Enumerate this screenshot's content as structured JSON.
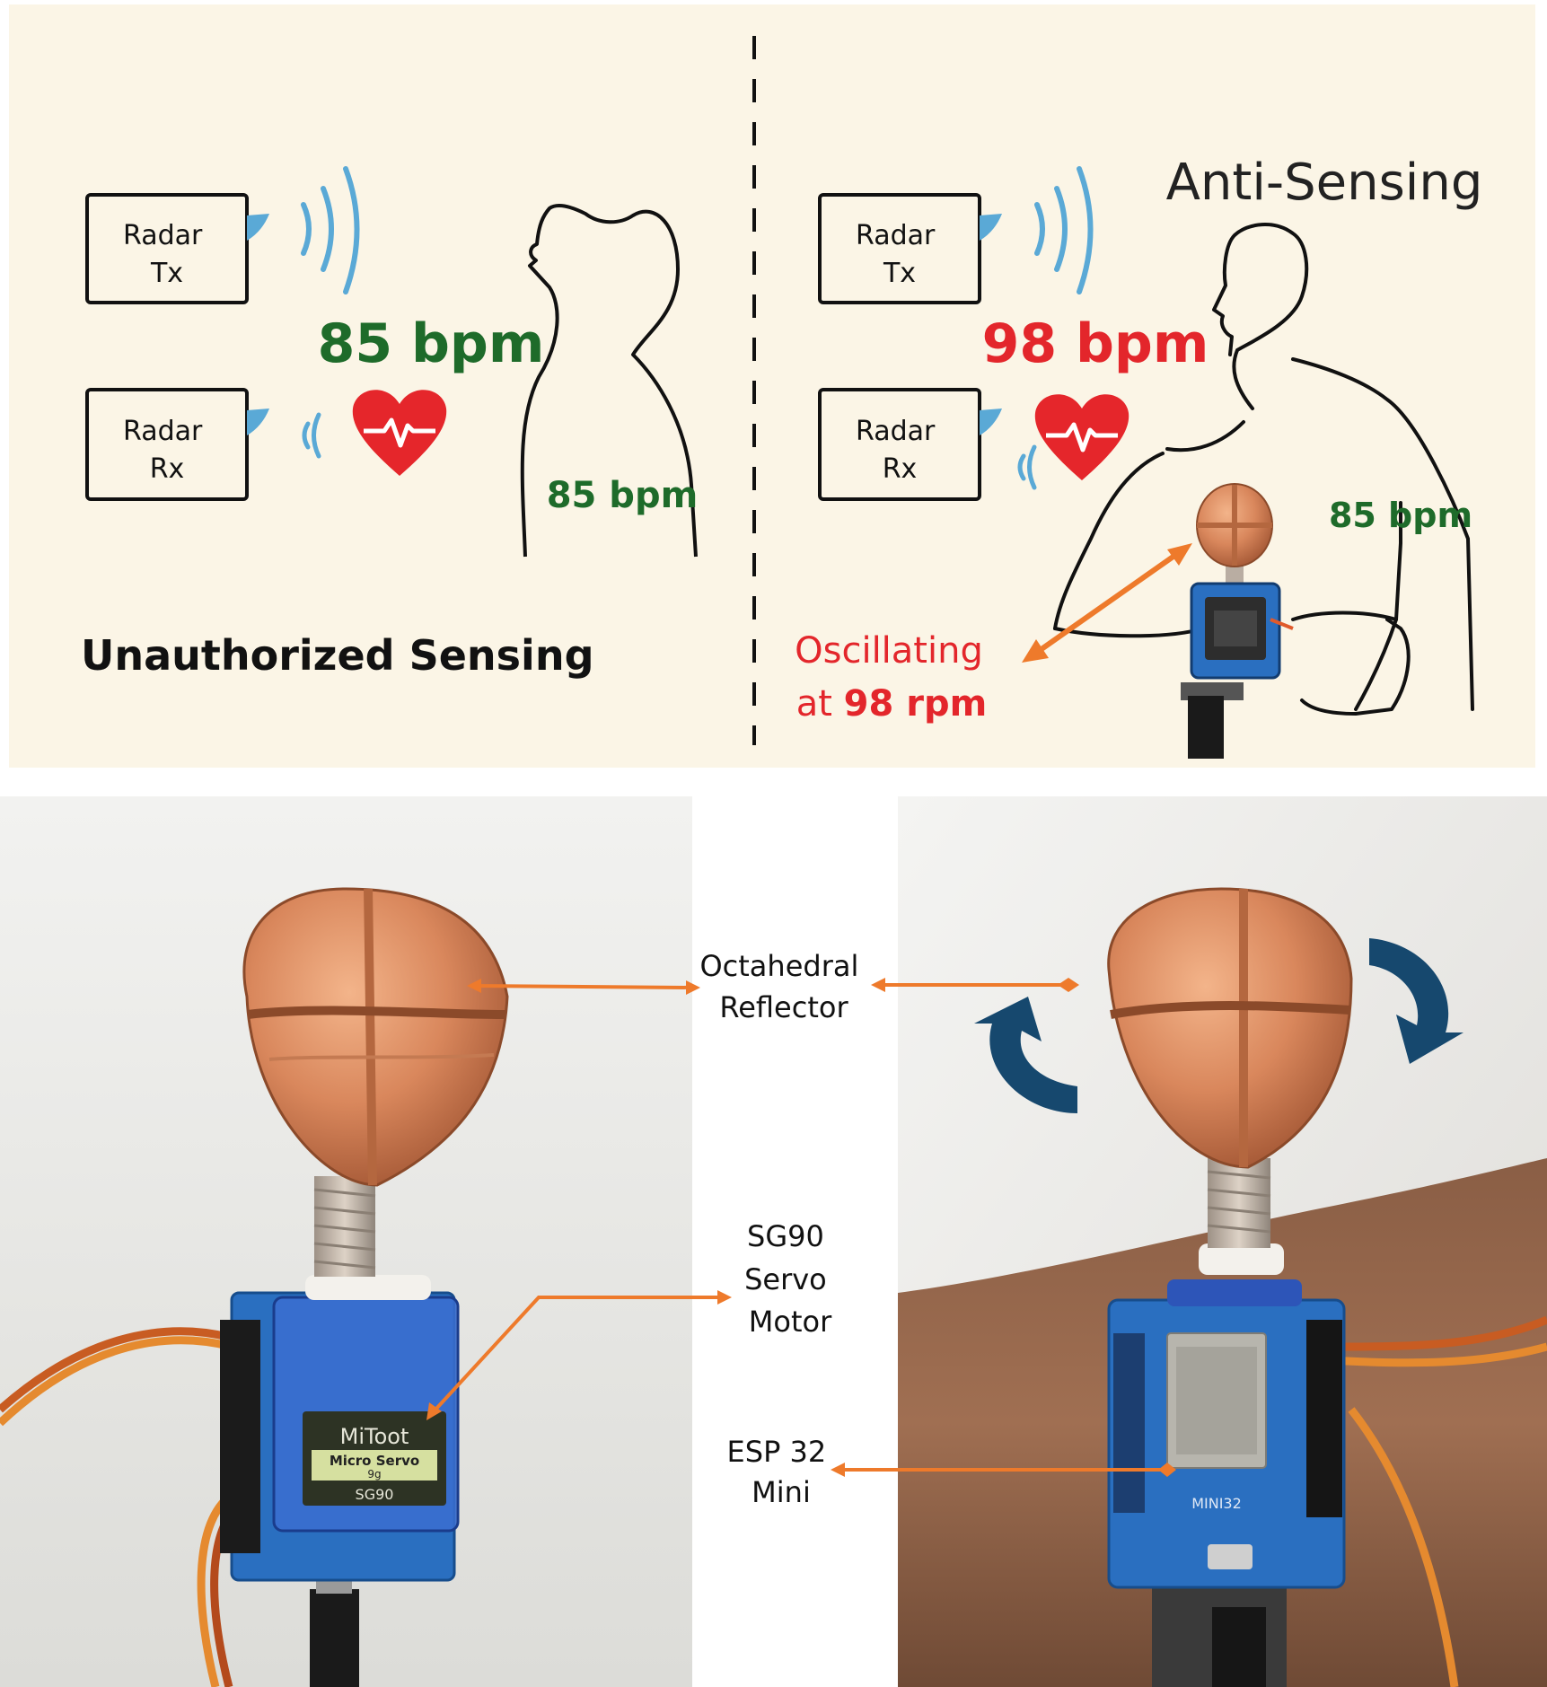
{
  "colors": {
    "background": "#fbf5e6",
    "wave": "#5aa9d6",
    "heart": "#e5262b",
    "green": "#1e6b2a",
    "red": "#e3262b",
    "arrow": "#ee7a2b",
    "copper": "#d9875c",
    "board": "#2a6fc0",
    "rotate": "#16486e"
  },
  "left": {
    "title": "Unauthorized Sensing",
    "radar_tx": [
      "Radar",
      "Tx"
    ],
    "radar_rx": [
      "Radar",
      "Rx"
    ],
    "sensed_rate": "85 bpm",
    "true_rate": "85 bpm"
  },
  "right": {
    "title": "Anti-Sensing",
    "radar_tx": [
      "Radar",
      "Tx"
    ],
    "radar_rx": [
      "Radar",
      "Rx"
    ],
    "sensed_rate": "98 bpm",
    "true_rate": "85 bpm",
    "osc_line1": "Oscillating",
    "osc_line2_prefix": "at ",
    "osc_line2_value": "98 rpm"
  },
  "photos": {
    "reflector_label": [
      "Octahedral",
      "Reflector"
    ],
    "servo_label": [
      "SG90",
      "Servo",
      "Motor"
    ],
    "esp_label": [
      "ESP 32",
      "Mini"
    ],
    "servo_print": [
      "MiToot",
      "Micro Servo",
      "9g",
      "SG90"
    ],
    "board_print": "MINI32"
  }
}
